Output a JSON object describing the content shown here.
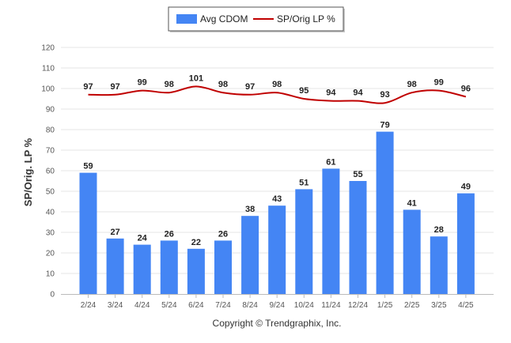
{
  "chart_data": {
    "type": "bar",
    "categories": [
      "2/24",
      "3/24",
      "4/24",
      "5/24",
      "6/24",
      "7/24",
      "8/24",
      "9/24",
      "10/24",
      "11/24",
      "12/24",
      "1/25",
      "2/25",
      "3/25",
      "4/25"
    ],
    "series": [
      {
        "name": "Avg CDOM",
        "type": "bar",
        "color": "#4485f4",
        "values": [
          59,
          27,
          24,
          26,
          22,
          26,
          38,
          43,
          51,
          61,
          55,
          79,
          41,
          28,
          49
        ]
      },
      {
        "name": "SP/Orig LP %",
        "type": "line",
        "color": "#c00000",
        "values": [
          97,
          97,
          99,
          98,
          101,
          98,
          97,
          98,
          95,
          94,
          94,
          93,
          98,
          99,
          96
        ]
      }
    ],
    "ylabel": "SP/Orig. LP %",
    "ylim": [
      0,
      120
    ],
    "yticks": [
      0,
      10,
      20,
      30,
      40,
      50,
      60,
      70,
      80,
      90,
      100,
      110,
      120
    ],
    "grid": true,
    "legend_position": "top-center"
  },
  "copyright": "Copyright © Trendgraphix, Inc."
}
